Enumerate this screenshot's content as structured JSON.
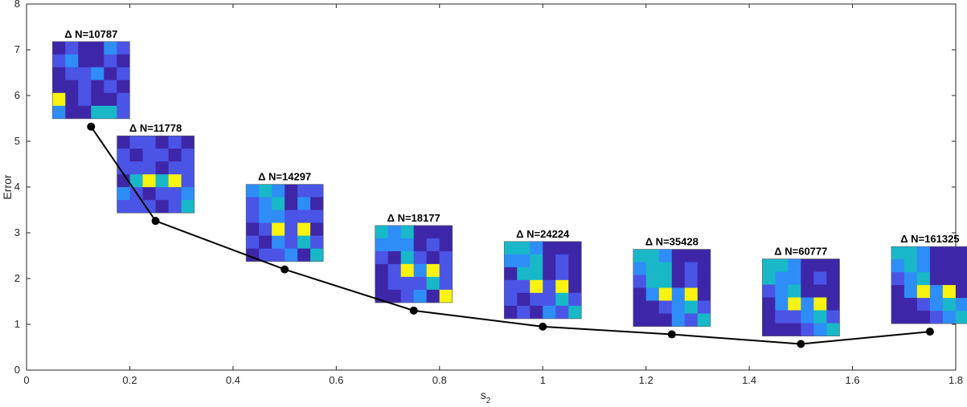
{
  "chart_data": {
    "type": "line",
    "title": "",
    "xlabel_base": "s",
    "xlabel_sub": "2",
    "ylabel": "Error",
    "xlim": [
      0,
      1.8
    ],
    "ylim": [
      0,
      8
    ],
    "xticks": [
      0,
      0.2,
      0.4,
      0.6,
      0.8,
      1,
      1.2,
      1.4,
      1.6,
      1.8
    ],
    "yticks": [
      0,
      1,
      2,
      3,
      4,
      5,
      6,
      7,
      8
    ],
    "xtick_labels": [
      "0",
      "0.2",
      "0.4",
      "0.6",
      "0.8",
      "1",
      "1.2",
      "1.4",
      "1.6",
      "1.8"
    ],
    "ytick_labels": [
      "0",
      "1",
      "2",
      "3",
      "4",
      "5",
      "6",
      "7",
      "8"
    ],
    "series": [
      {
        "name": "Error",
        "x": [
          0.125,
          0.25,
          0.5,
          0.75,
          1.0,
          1.25,
          1.5,
          1.75
        ],
        "y": [
          5.32,
          3.26,
          2.2,
          1.3,
          0.95,
          0.78,
          0.57,
          0.84
        ]
      }
    ],
    "annotations": [
      {
        "label": "Δ N=10787",
        "x": 0.125,
        "y": 5.32
      },
      {
        "label": "Δ N=11778",
        "x": 0.25,
        "y": 3.26
      },
      {
        "label": "Δ N=14297",
        "x": 0.5,
        "y": 2.2
      },
      {
        "label": "Δ N=18177",
        "x": 0.75,
        "y": 1.3
      },
      {
        "label": "Δ N=24224",
        "x": 1.0,
        "y": 0.95
      },
      {
        "label": "Δ N=35428",
        "x": 1.25,
        "y": 0.78
      },
      {
        "label": "Δ N=60777",
        "x": 1.5,
        "y": 0.57
      },
      {
        "label": "Δ N=161325",
        "x": 1.75,
        "y": 0.84
      }
    ],
    "heatmaps": [
      [
        [
          1,
          2,
          1,
          1,
          3,
          2
        ],
        [
          2,
          3,
          1,
          1,
          2,
          1
        ],
        [
          1,
          2,
          2,
          3,
          1,
          2
        ],
        [
          1,
          1,
          2,
          1,
          2,
          1
        ],
        [
          5,
          1,
          2,
          1,
          1,
          2
        ],
        [
          3,
          1,
          1,
          4,
          4,
          2
        ]
      ],
      [
        [
          1,
          2,
          2,
          1,
          2,
          1
        ],
        [
          2,
          1,
          2,
          2,
          1,
          2
        ],
        [
          2,
          2,
          2,
          1,
          2,
          2
        ],
        [
          1,
          4,
          5,
          4,
          5,
          2
        ],
        [
          3,
          2,
          1,
          2,
          2,
          3
        ],
        [
          2,
          2,
          2,
          1,
          2,
          4
        ]
      ],
      [
        [
          3,
          4,
          3,
          1,
          2,
          2
        ],
        [
          2,
          3,
          4,
          1,
          3,
          1
        ],
        [
          2,
          3,
          3,
          2,
          2,
          2
        ],
        [
          1,
          2,
          5,
          2,
          5,
          1
        ],
        [
          2,
          1,
          3,
          2,
          4,
          2
        ],
        [
          1,
          2,
          2,
          3,
          1,
          4
        ]
      ],
      [
        [
          4,
          3,
          4,
          1,
          1,
          1
        ],
        [
          3,
          3,
          3,
          1,
          2,
          1
        ],
        [
          2,
          1,
          4,
          2,
          1,
          2
        ],
        [
          1,
          2,
          5,
          3,
          5,
          2
        ],
        [
          1,
          2,
          2,
          2,
          4,
          2
        ],
        [
          1,
          1,
          2,
          3,
          1,
          5
        ]
      ],
      [
        [
          4,
          4,
          3,
          1,
          1,
          1
        ],
        [
          3,
          3,
          4,
          1,
          2,
          1
        ],
        [
          1,
          4,
          4,
          1,
          2,
          1
        ],
        [
          2,
          2,
          5,
          2,
          5,
          1
        ],
        [
          2,
          1,
          2,
          2,
          4,
          2
        ],
        [
          1,
          2,
          1,
          3,
          2,
          4
        ]
      ],
      [
        [
          4,
          4,
          3,
          1,
          1,
          1
        ],
        [
          3,
          4,
          4,
          1,
          2,
          1
        ],
        [
          2,
          4,
          4,
          1,
          2,
          1
        ],
        [
          1,
          3,
          5,
          3,
          5,
          1
        ],
        [
          1,
          1,
          2,
          3,
          4,
          2
        ],
        [
          1,
          1,
          1,
          3,
          2,
          4
        ]
      ],
      [
        [
          4,
          4,
          3,
          1,
          1,
          1
        ],
        [
          4,
          3,
          3,
          1,
          2,
          1
        ],
        [
          2,
          3,
          4,
          1,
          1,
          1
        ],
        [
          1,
          3,
          5,
          3,
          5,
          1
        ],
        [
          1,
          2,
          2,
          3,
          4,
          2
        ],
        [
          1,
          1,
          1,
          2,
          3,
          4
        ]
      ],
      [
        [
          4,
          4,
          3,
          1,
          1,
          1
        ],
        [
          3,
          4,
          3,
          1,
          1,
          1
        ],
        [
          2,
          3,
          4,
          1,
          1,
          1
        ],
        [
          1,
          3,
          5,
          3,
          5,
          1
        ],
        [
          1,
          1,
          2,
          3,
          4,
          3
        ],
        [
          1,
          1,
          1,
          2,
          3,
          4
        ]
      ]
    ]
  },
  "colors": {
    "line": "#000000",
    "marker": "#000000",
    "axis": "#262626",
    "palette": [
      "#3E26A8",
      "#4A55E6",
      "#2F8DF8",
      "#19B8C8",
      "#F8F30F"
    ]
  }
}
